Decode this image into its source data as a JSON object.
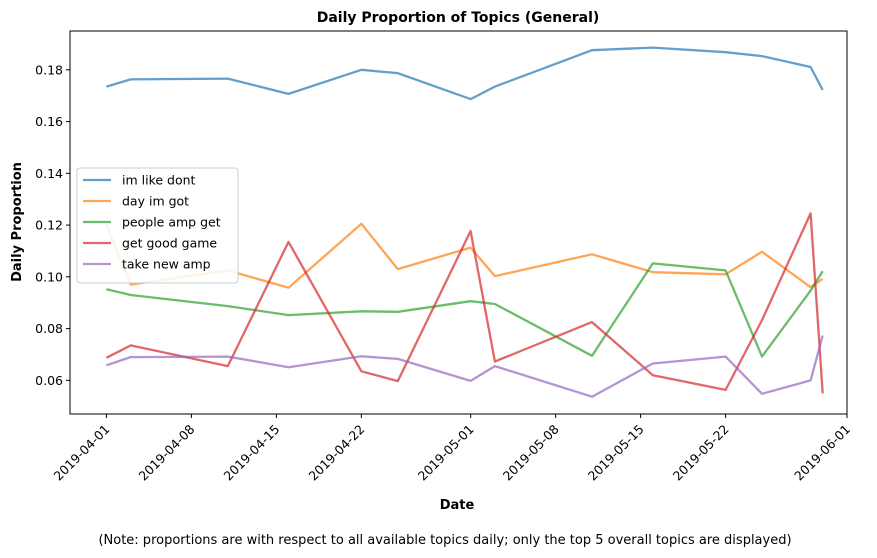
{
  "chart_data": {
    "type": "line",
    "title": "Daily Proportion of Topics (General)",
    "xlabel": "Date",
    "ylabel": "Daily Proportion",
    "note": "(Note: proportions are with respect to all available topics daily; only the top 5 overall topics are displayed)",
    "x_ticks": [
      "2019-04-01",
      "2019-04-08",
      "2019-04-15",
      "2019-04-22",
      "2019-05-01",
      "2019-05-08",
      "2019-05-15",
      "2019-05-22",
      "2019-06-01"
    ],
    "y_ticks": [
      0.06,
      0.08,
      0.1,
      0.12,
      0.14,
      0.16,
      0.18
    ],
    "xlim": [
      "2019-03-29",
      "2019-06-01"
    ],
    "ylim": [
      0.047,
      0.195
    ],
    "grid": false,
    "legend_position": "center-left",
    "x": [
      "2019-04-01",
      "2019-04-03",
      "2019-04-11",
      "2019-04-16",
      "2019-04-22",
      "2019-04-25",
      "2019-05-01",
      "2019-05-03",
      "2019-05-11",
      "2019-05-16",
      "2019-05-22",
      "2019-05-25",
      "2019-05-29",
      "2019-05-30"
    ],
    "series": [
      {
        "name": "im like dont",
        "color": "#1f77b4",
        "values": [
          0.1735,
          0.1763,
          0.1766,
          0.1707,
          0.18,
          0.1787,
          0.1687,
          0.1735,
          0.1876,
          0.1886,
          0.1868,
          0.1853,
          0.1811,
          0.1722
        ]
      },
      {
        "name": "day im got",
        "color": "#ff7f0e",
        "values": [
          0.12,
          0.097,
          0.1025,
          0.0958,
          0.1205,
          0.103,
          0.1113,
          0.1003,
          0.1087,
          0.1018,
          0.101,
          0.1097,
          0.096,
          0.0992
        ]
      },
      {
        "name": "people amp get",
        "color": "#2ca02c",
        "values": [
          0.0952,
          0.093,
          0.0887,
          0.0852,
          0.0867,
          0.0865,
          0.0906,
          0.0895,
          0.0695,
          0.1052,
          0.1025,
          0.0692,
          0.0947,
          0.1022
        ]
      },
      {
        "name": "get good game",
        "color": "#d62728",
        "values": [
          0.0687,
          0.0735,
          0.0655,
          0.1135,
          0.0635,
          0.0597,
          0.1177,
          0.0673,
          0.0825,
          0.062,
          0.0563,
          0.0833,
          0.1245,
          0.055
        ]
      },
      {
        "name": "take new amp",
        "color": "#9467bd",
        "values": [
          0.0658,
          0.069,
          0.0692,
          0.0651,
          0.0693,
          0.0683,
          0.0598,
          0.0655,
          0.0537,
          0.0665,
          0.0692,
          0.0548,
          0.06,
          0.0773
        ]
      }
    ]
  }
}
